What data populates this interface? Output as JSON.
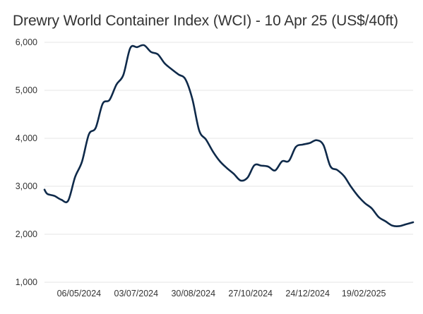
{
  "chart_data": {
    "type": "line",
    "title": "Drewry World Container Index (WCI) - 10 Apr 25 (US$/40ft)",
    "xlabel": "",
    "ylabel": "",
    "ylim": [
      1000,
      6000
    ],
    "xlim": [
      "2024-04-01",
      "2025-04-10"
    ],
    "y_ticks": [
      "1,000",
      "2,000",
      "3,000",
      "4,000",
      "5,000",
      "6,000"
    ],
    "y_tick_values": [
      1000,
      2000,
      3000,
      4000,
      5000,
      6000
    ],
    "x_ticks": [
      "06/05/2024",
      "03/07/2024",
      "30/08/2024",
      "27/10/2024",
      "24/12/2024",
      "19/02/2025"
    ],
    "x_tick_dates": [
      "2024-05-06",
      "2024-07-03",
      "2024-08-30",
      "2024-10-27",
      "2024-12-24",
      "2025-02-19"
    ],
    "grid": true,
    "legend": "none",
    "line_color": "#0f2a4a",
    "series": [
      {
        "name": "",
        "x": [
          "2024-04-01",
          "2024-04-04",
          "2024-04-11",
          "2024-04-18",
          "2024-04-25",
          "2024-05-02",
          "2024-05-09",
          "2024-05-16",
          "2024-05-23",
          "2024-05-30",
          "2024-06-06",
          "2024-06-13",
          "2024-06-20",
          "2024-06-27",
          "2024-07-04",
          "2024-07-11",
          "2024-07-18",
          "2024-07-25",
          "2024-08-01",
          "2024-08-08",
          "2024-08-15",
          "2024-08-22",
          "2024-08-29",
          "2024-09-05",
          "2024-09-12",
          "2024-09-19",
          "2024-09-26",
          "2024-10-03",
          "2024-10-10",
          "2024-10-17",
          "2024-10-24",
          "2024-10-31",
          "2024-11-07",
          "2024-11-14",
          "2024-11-21",
          "2024-11-28",
          "2024-12-05",
          "2024-12-12",
          "2024-12-19",
          "2024-12-26",
          "2025-01-02",
          "2025-01-09",
          "2025-01-16",
          "2025-01-23",
          "2025-01-30",
          "2025-02-06",
          "2025-02-13",
          "2025-02-20",
          "2025-02-27",
          "2025-03-06",
          "2025-03-13",
          "2025-03-20",
          "2025-03-27",
          "2025-04-03",
          "2025-04-10"
        ],
        "values": [
          2930,
          2840,
          2800,
          2720,
          2700,
          3190,
          3510,
          4080,
          4220,
          4720,
          4800,
          5120,
          5320,
          5880,
          5900,
          5940,
          5800,
          5750,
          5560,
          5440,
          5330,
          5230,
          4820,
          4160,
          3970,
          3720,
          3520,
          3380,
          3260,
          3120,
          3180,
          3440,
          3430,
          3410,
          3330,
          3520,
          3530,
          3820,
          3870,
          3900,
          3960,
          3860,
          3420,
          3340,
          3210,
          2990,
          2800,
          2650,
          2540,
          2360,
          2270,
          2180,
          2170,
          2210,
          2250
        ]
      }
    ]
  }
}
